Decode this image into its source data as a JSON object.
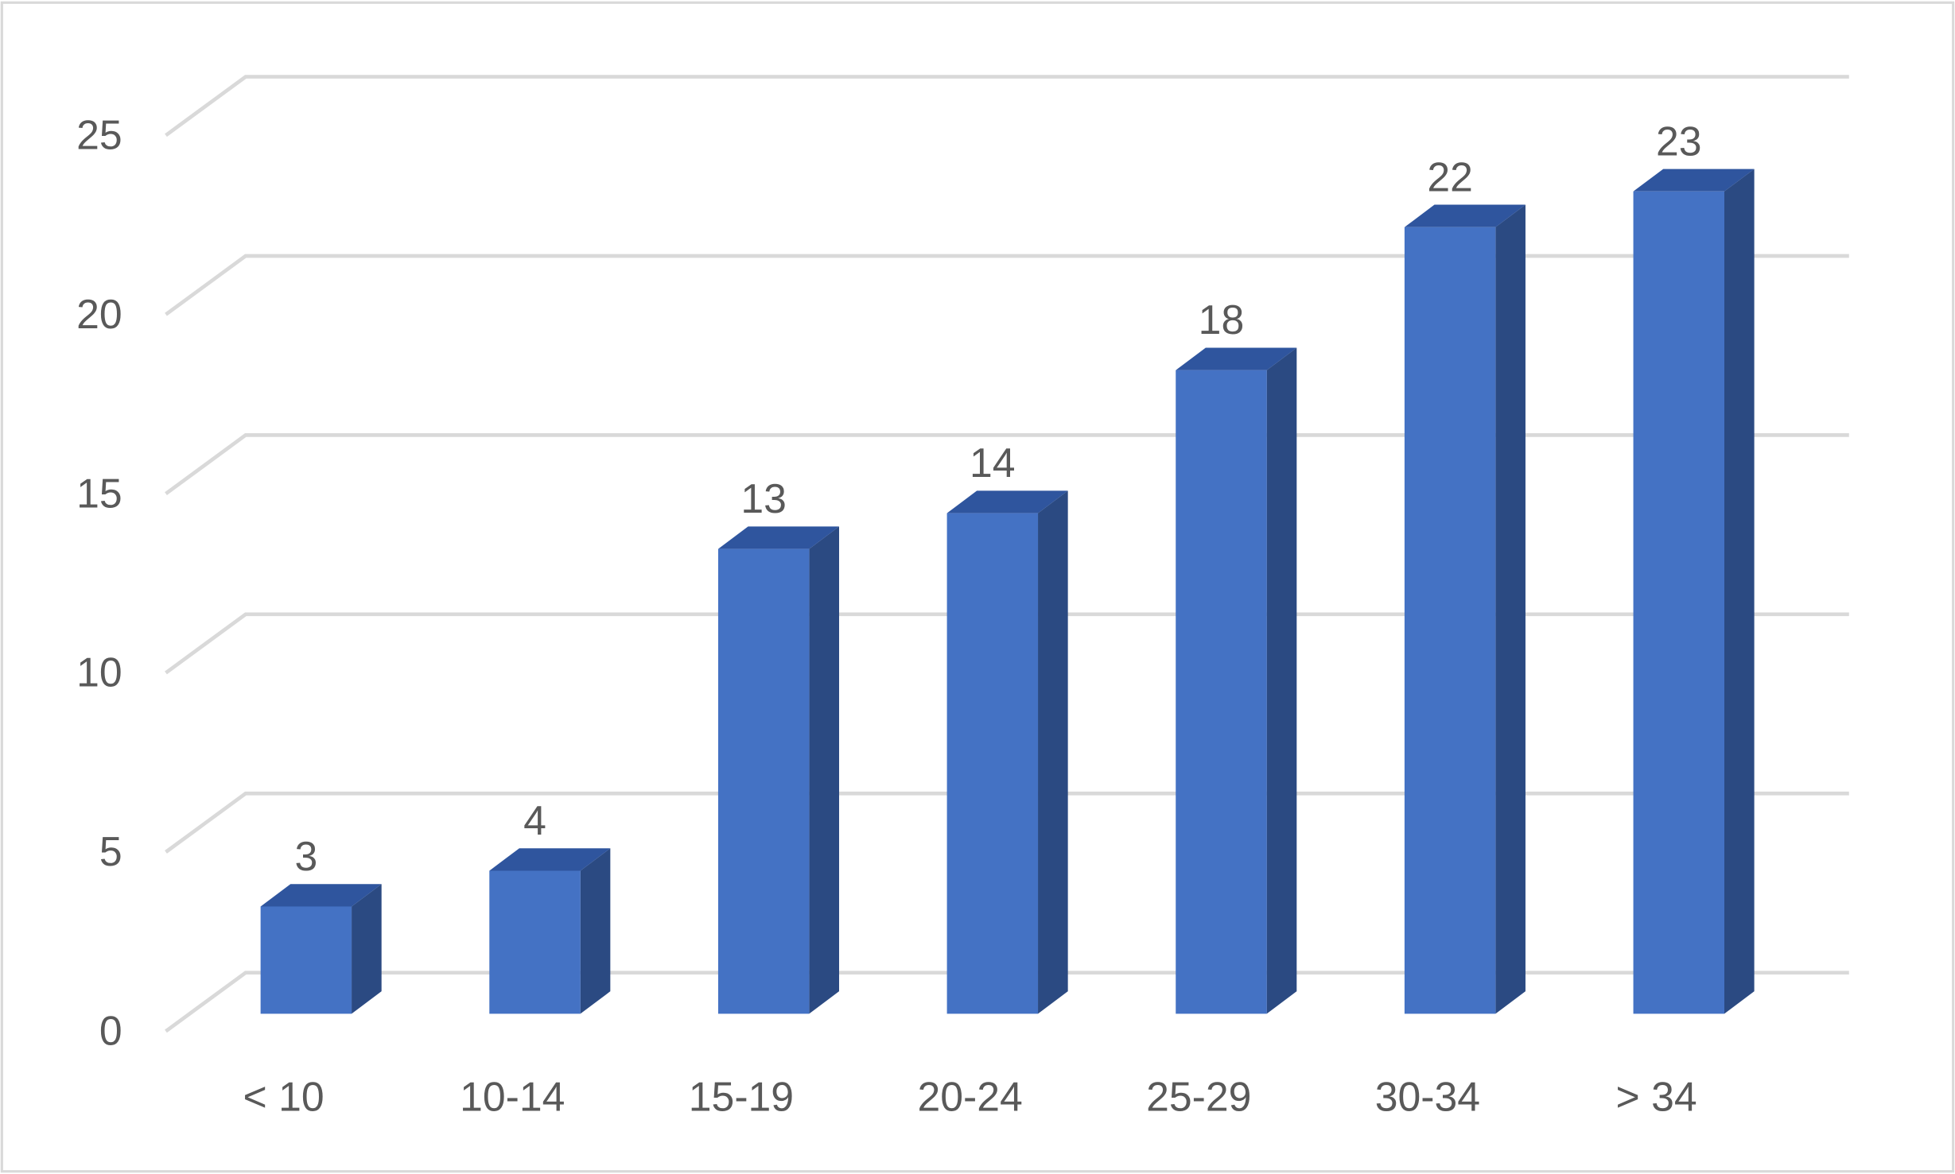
{
  "chart_data": {
    "type": "bar3d",
    "categories": [
      "< 10",
      "10-14",
      "15-19",
      "20-24",
      "25-29",
      "30-34",
      "> 34"
    ],
    "values": [
      3,
      4,
      13,
      14,
      18,
      22,
      23
    ],
    "color": "#4472c4",
    "ylim": [
      0,
      25
    ],
    "yticks": [
      0,
      5,
      10,
      15,
      20,
      25
    ],
    "grid": true
  }
}
